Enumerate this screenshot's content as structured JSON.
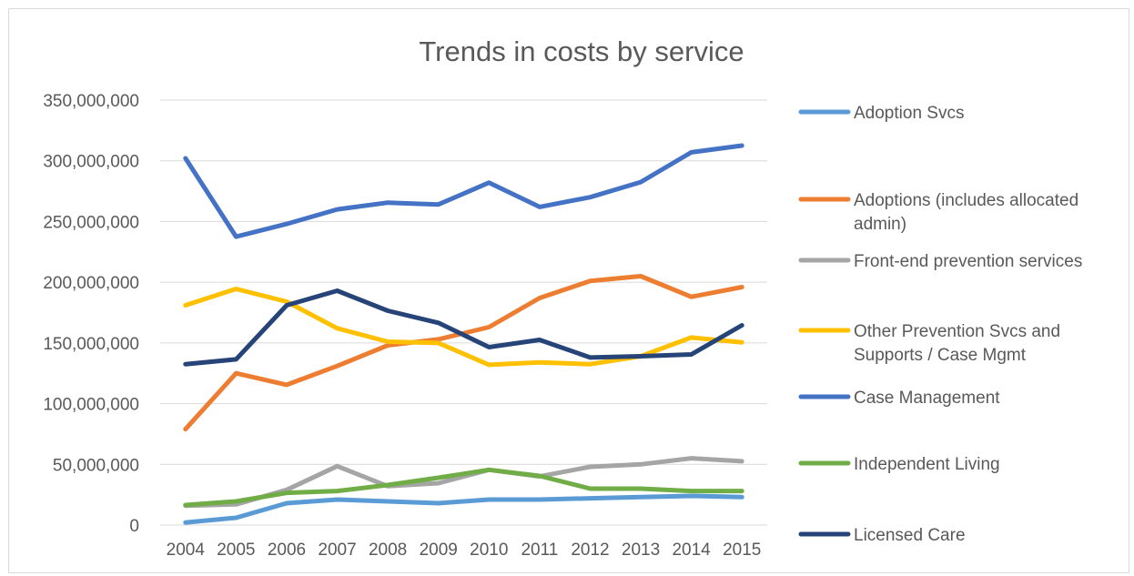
{
  "chart_data": {
    "type": "line",
    "title": "Trends in costs by service",
    "xlabel": "",
    "ylabel": "",
    "ylim": [
      0,
      350000000
    ],
    "y_ticks": [
      "0",
      "50,000,000",
      "100,000,000",
      "150,000,000",
      "200,000,000",
      "250,000,000",
      "300,000,000",
      "350,000,000"
    ],
    "y_tick_values": [
      0,
      50000000,
      100000000,
      150000000,
      200000000,
      250000000,
      300000000,
      350000000
    ],
    "grid": true,
    "legend_position": "right",
    "categories": [
      "2004",
      "2005",
      "2006",
      "2007",
      "2008",
      "2009",
      "2010",
      "2011",
      "2012",
      "2013",
      "2014",
      "2015"
    ],
    "series": [
      {
        "name": "Adoption Svcs",
        "color": "#5B9BD5",
        "values": [
          2000000,
          6000000,
          18000000,
          21000000,
          19500000,
          18000000,
          21000000,
          21000000,
          22000000,
          23000000,
          24000000,
          23000000
        ]
      },
      {
        "name": "Adoptions (includes allocated admin)",
        "color": "#ED7D31",
        "values": [
          79000000,
          125000000,
          115500000,
          131000000,
          148000000,
          153000000,
          163000000,
          187000000,
          201000000,
          205000000,
          188000000,
          196000000
        ]
      },
      {
        "name": "Front-end prevention services",
        "color": "#A5A5A5",
        "values": [
          16000000,
          17000000,
          29000000,
          48500000,
          32000000,
          34500000,
          45500000,
          40000000,
          48000000,
          50000000,
          55000000,
          52500000
        ]
      },
      {
        "name": "Other Prevention Svcs and Supports / Case Mgmt",
        "color": "#FFC000",
        "values": [
          181000000,
          194500000,
          184000000,
          162000000,
          151000000,
          150000000,
          132000000,
          134000000,
          132500000,
          139000000,
          154500000,
          150500000
        ]
      },
      {
        "name": "Case Management",
        "color": "#4472C4",
        "values": [
          302000000,
          237500000,
          248000000,
          260000000,
          265500000,
          264000000,
          282000000,
          262000000,
          270000000,
          282500000,
          307000000,
          312500000
        ]
      },
      {
        "name": "Independent Living",
        "color": "#70AD47",
        "values": [
          16500000,
          19500000,
          26500000,
          28000000,
          33000000,
          39000000,
          45500000,
          40500000,
          30000000,
          30000000,
          28000000,
          28000000
        ]
      },
      {
        "name": "Licensed Care",
        "color": "#264478",
        "values": [
          132500000,
          136500000,
          181000000,
          193000000,
          176500000,
          166500000,
          146500000,
          152500000,
          138000000,
          139000000,
          140500000,
          164500000
        ]
      }
    ]
  }
}
